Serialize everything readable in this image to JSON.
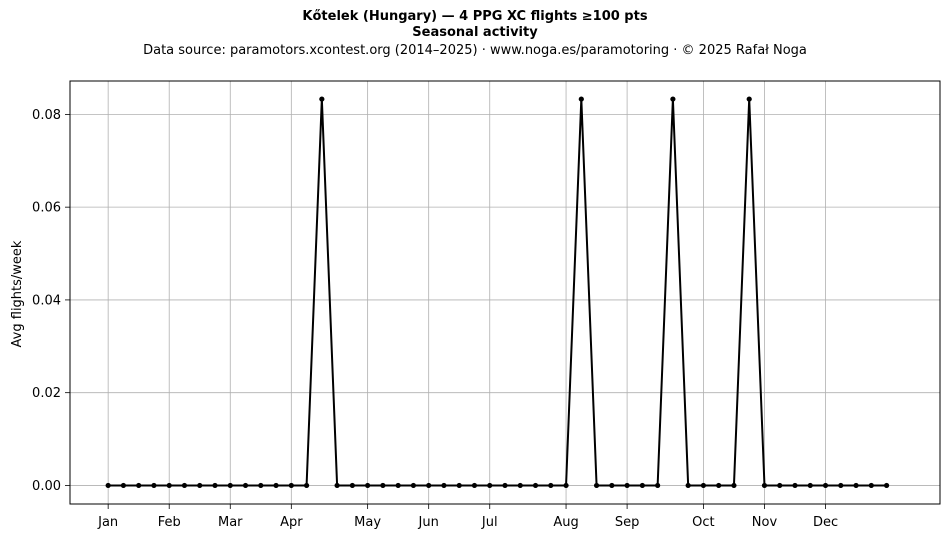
{
  "chart_data": {
    "type": "line",
    "title": "Kőtelek (Hungary)  —  4 PPG XC flights ≥100 pts",
    "subtitle": "Seasonal activity",
    "source_note": "Data source: paramotors.xcontest.org (2014–2025)  ·  www.noga.es/paramotoring  ·  © 2025 Rafał Noga",
    "xlabel": "",
    "ylabel": "Avg flights/week",
    "ylim": [
      -0.004,
      0.0872
    ],
    "xlim": [
      -2.5,
      54.5
    ],
    "grid": true,
    "x_ticks": [
      {
        "pos": 0,
        "label": "Jan"
      },
      {
        "pos": 4,
        "label": "Feb"
      },
      {
        "pos": 8,
        "label": "Mar"
      },
      {
        "pos": 12,
        "label": "Apr"
      },
      {
        "pos": 17,
        "label": "May"
      },
      {
        "pos": 21,
        "label": "Jun"
      },
      {
        "pos": 25,
        "label": "Jul"
      },
      {
        "pos": 30,
        "label": "Aug"
      },
      {
        "pos": 34,
        "label": "Sep"
      },
      {
        "pos": 39,
        "label": "Oct"
      },
      {
        "pos": 43,
        "label": "Nov"
      },
      {
        "pos": 47,
        "label": "Dec"
      }
    ],
    "y_ticks": [
      "0.00",
      "0.02",
      "0.04",
      "0.06",
      "0.08"
    ],
    "y_tick_values": [
      0,
      0.02,
      0.04,
      0.06,
      0.08
    ],
    "series": [
      {
        "color": "#000000",
        "x": [
          0,
          1,
          2,
          3,
          4,
          5,
          6,
          7,
          8,
          9,
          10,
          11,
          12,
          13,
          14,
          15,
          16,
          17,
          18,
          19,
          20,
          21,
          22,
          23,
          24,
          25,
          26,
          27,
          28,
          29,
          30,
          31,
          32,
          33,
          34,
          35,
          36,
          37,
          38,
          39,
          40,
          41,
          42,
          43,
          44,
          45,
          46,
          47,
          48,
          49,
          50,
          51
        ],
        "values": [
          0,
          0,
          0,
          0,
          0,
          0,
          0,
          0,
          0,
          0,
          0,
          0,
          0,
          0,
          0.0833,
          0,
          0,
          0,
          0,
          0,
          0,
          0,
          0,
          0,
          0,
          0,
          0,
          0,
          0,
          0,
          0,
          0.0833,
          0,
          0,
          0,
          0,
          0,
          0.0833,
          0,
          0,
          0,
          0,
          0.0833,
          0,
          0,
          0,
          0,
          0,
          0,
          0,
          0,
          0
        ]
      }
    ]
  }
}
